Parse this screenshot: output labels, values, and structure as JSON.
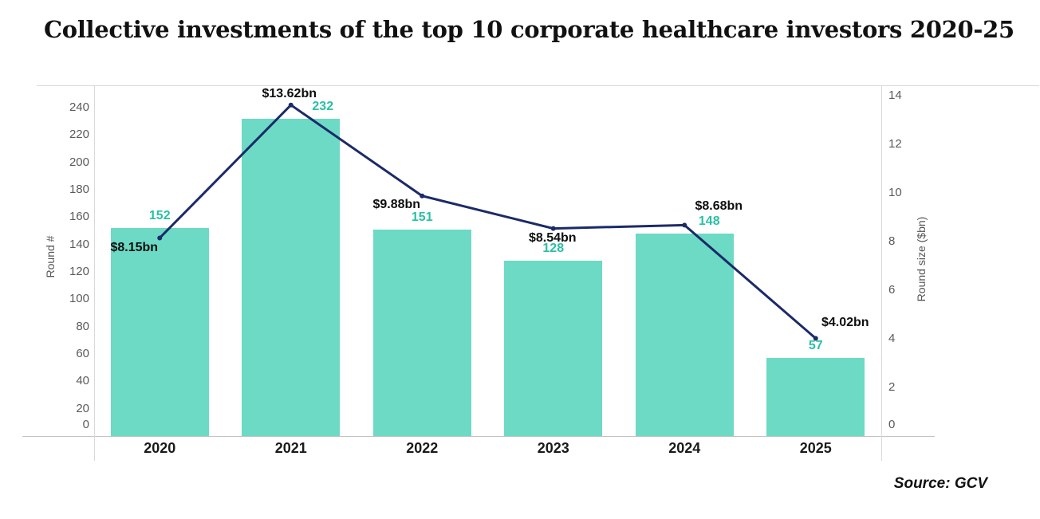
{
  "header": {
    "title": "Collective investments of the top 10 corporate healthcare investors 2020-25"
  },
  "footer": {
    "source": "Source: GCV"
  },
  "chart_data": {
    "type": "bar",
    "title": "Collective investments of the top 10 corporate healthcare investors 2020-25",
    "categories": [
      "2020",
      "2021",
      "2022",
      "2023",
      "2024",
      "2025"
    ],
    "series": [
      {
        "name": "Round #",
        "chart_type": "bar",
        "axis": "left",
        "values": [
          152,
          232,
          151,
          128,
          148,
          57
        ],
        "bar_color": "#6cdac4",
        "label_color": "#2ac0a4",
        "label_dx": [
          0,
          40,
          0,
          0,
          31,
          0
        ]
      },
      {
        "name": "Round size ($bn)",
        "chart_type": "line",
        "axis": "right",
        "values": [
          8.15,
          13.62,
          9.88,
          8.54,
          8.68,
          4.02
        ],
        "point_labels": [
          "$8.15bn",
          "$13.62bn",
          "$9.88bn",
          "$8.54bn",
          "$8.68bn",
          "$4.02bn"
        ],
        "line_color": "#1b2a68",
        "label_color": "#0e0e0e",
        "label_dx": [
          -32,
          -2,
          -32,
          -1,
          43,
          37
        ],
        "label_dy": [
          13,
          -14,
          11,
          12,
          -23,
          -19
        ]
      }
    ],
    "left_axis": {
      "title": "Round #",
      "ticks": [
        0,
        20,
        40,
        60,
        80,
        100,
        120,
        140,
        160,
        180,
        200,
        220,
        240
      ],
      "range": [
        0,
        256.3
      ]
    },
    "right_axis": {
      "title": "Round size ($bn)",
      "ticks": [
        0,
        2,
        4,
        6,
        8,
        10,
        12,
        14
      ],
      "range": [
        0,
        14.43
      ]
    },
    "grid": false,
    "legend_position": "none"
  }
}
